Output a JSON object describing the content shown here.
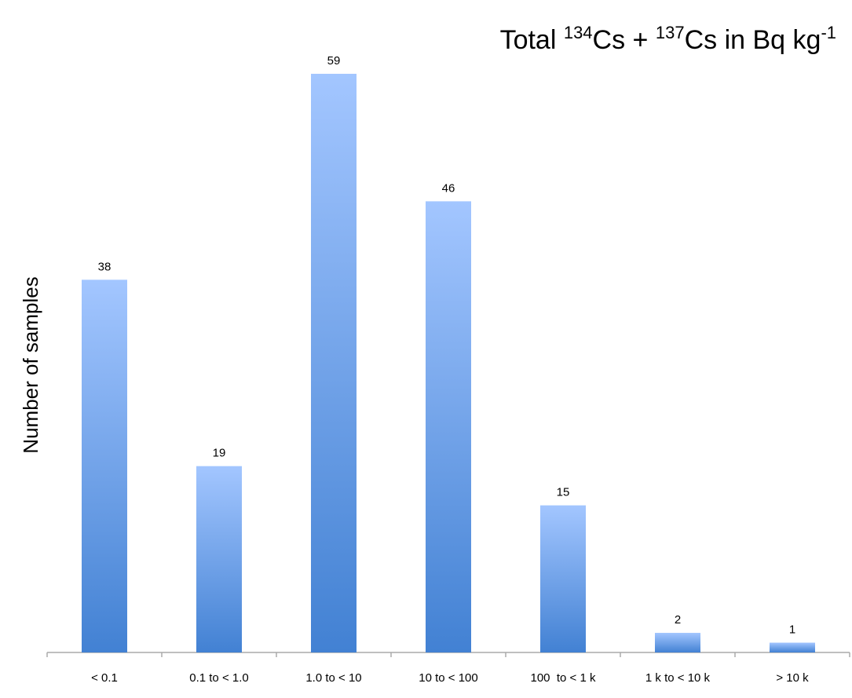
{
  "chart_data": {
    "type": "bar",
    "title": [
      "Total ",
      "134",
      "Cs + ",
      "137",
      "Cs in Bq kg",
      "-1"
    ],
    "y_label": "Number of samples",
    "categories": [
      "< 0.1",
      "0.1 to < 1.0",
      "1.0 to < 10",
      "10 to < 100",
      "100  to < 1 k",
      "1 k to < 10 k",
      "> 10 k"
    ],
    "values": [
      38,
      19,
      59,
      46,
      15,
      2,
      1
    ],
    "color": [
      "#a3c6ff",
      "#4281d3"
    ],
    "ylim": [
      0,
      60
    ]
  }
}
